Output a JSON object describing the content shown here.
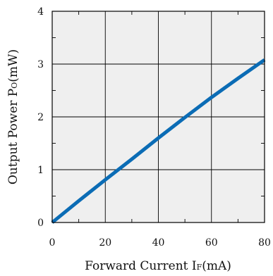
{
  "chart_data": {
    "type": "line",
    "xlabel": {
      "main": "Forward Current I",
      "sub": "F",
      "unit": "(mA)"
    },
    "ylabel": {
      "main": "Output Power P",
      "sub": "O",
      "unit": "(mW)"
    },
    "xlim": [
      0,
      80
    ],
    "ylim": [
      0,
      4
    ],
    "xticks": [
      0,
      20,
      40,
      60,
      80
    ],
    "yticks": [
      0,
      1,
      2,
      3,
      4
    ],
    "xtick_labels": [
      "0",
      "20",
      "40",
      "60",
      "80"
    ],
    "ytick_labels": [
      "0",
      "1",
      "2",
      "3",
      "4"
    ],
    "grid": true,
    "plot_background": "#efefef",
    "series": [
      {
        "color": "#0b6cb5",
        "x": [
          0,
          10,
          20,
          30,
          40,
          50,
          60,
          70,
          80
        ],
        "y": [
          0,
          0.41,
          0.81,
          1.2,
          1.6,
          1.99,
          2.37,
          2.73,
          3.08
        ]
      }
    ]
  }
}
